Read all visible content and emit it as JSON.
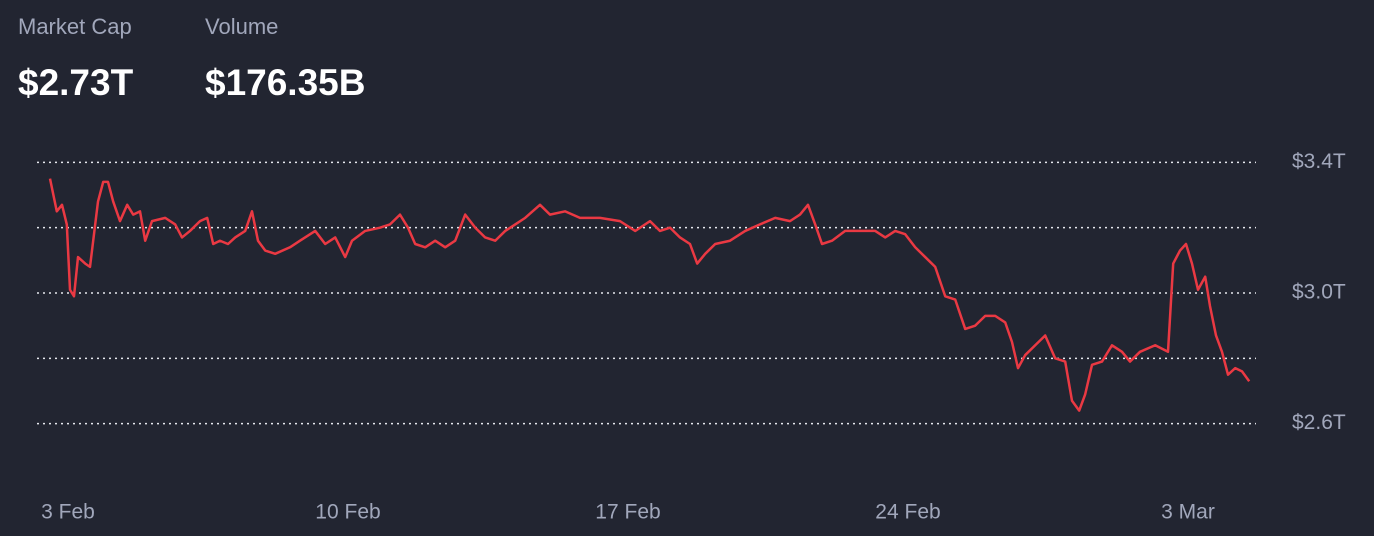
{
  "header": {
    "stats": [
      {
        "label": "Market Cap",
        "value": "$2.73T"
      },
      {
        "label": "Volume",
        "value": "$176.35B"
      }
    ]
  },
  "chart_data": {
    "type": "line",
    "x": [
      -0.45,
      -0.28,
      -0.15,
      -0.03,
      0.05,
      0.15,
      0.25,
      0.43,
      0.55,
      0.63,
      0.75,
      0.88,
      1.0,
      1.13,
      1.3,
      1.48,
      1.63,
      1.8,
      1.93,
      2.1,
      2.43,
      2.68,
      2.85,
      3.05,
      3.3,
      3.48,
      3.63,
      3.8,
      4.0,
      4.18,
      4.43,
      4.6,
      4.75,
      4.93,
      5.18,
      5.55,
      5.8,
      6.18,
      6.43,
      6.68,
      6.93,
      7.1,
      7.43,
      7.8,
      8.05,
      8.3,
      8.5,
      8.68,
      8.93,
      9.18,
      9.43,
      9.68,
      9.93,
      10.18,
      10.43,
      10.68,
      10.93,
      11.18,
      11.43,
      11.8,
      12.05,
      12.43,
      12.8,
      13.3,
      13.8,
      14.18,
      14.55,
      14.8,
      15.05,
      15.3,
      15.55,
      15.73,
      15.93,
      16.18,
      16.55,
      16.93,
      17.3,
      17.68,
      18.05,
      18.3,
      18.5,
      18.68,
      18.85,
      19.1,
      19.43,
      19.8,
      20.18,
      20.43,
      20.68,
      20.93,
      21.18,
      21.43,
      21.68,
      21.93,
      22.18,
      22.43,
      22.68,
      22.93,
      23.18,
      23.43,
      23.6,
      23.75,
      23.93,
      24.18,
      24.43,
      24.68,
      24.93,
      25.1,
      25.28,
      25.43,
      25.6,
      25.85,
      26.1,
      26.35,
      26.55,
      26.8,
      27.18,
      27.5,
      27.63,
      27.8,
      27.95,
      28.1,
      28.25,
      28.43,
      28.55,
      28.7,
      28.85,
      29.0,
      29.18,
      29.35,
      29.53
    ],
    "series": [
      {
        "color": "#ea3943",
        "values": [
          3.35,
          3.25,
          3.27,
          3.21,
          3.01,
          2.99,
          3.11,
          3.09,
          3.08,
          3.16,
          3.28,
          3.34,
          3.34,
          3.28,
          3.22,
          3.27,
          3.24,
          3.25,
          3.16,
          3.22,
          3.23,
          3.21,
          3.17,
          3.19,
          3.22,
          3.23,
          3.15,
          3.16,
          3.15,
          3.17,
          3.19,
          3.25,
          3.16,
          3.13,
          3.12,
          3.14,
          3.16,
          3.19,
          3.15,
          3.17,
          3.11,
          3.16,
          3.19,
          3.2,
          3.21,
          3.24,
          3.2,
          3.15,
          3.14,
          3.16,
          3.14,
          3.16,
          3.24,
          3.2,
          3.17,
          3.16,
          3.19,
          3.21,
          3.23,
          3.27,
          3.24,
          3.25,
          3.23,
          3.23,
          3.22,
          3.19,
          3.22,
          3.19,
          3.2,
          3.17,
          3.15,
          3.09,
          3.12,
          3.15,
          3.16,
          3.19,
          3.21,
          3.23,
          3.22,
          3.24,
          3.27,
          3.21,
          3.15,
          3.16,
          3.19,
          3.19,
          3.19,
          3.17,
          3.19,
          3.18,
          3.14,
          3.11,
          3.08,
          2.99,
          2.98,
          2.89,
          2.9,
          2.93,
          2.93,
          2.91,
          2.85,
          2.77,
          2.81,
          2.84,
          2.87,
          2.8,
          2.79,
          2.67,
          2.64,
          2.69,
          2.78,
          2.79,
          2.84,
          2.82,
          2.79,
          2.82,
          2.84,
          2.82,
          3.09,
          3.13,
          3.15,
          3.09,
          3.01,
          3.05,
          2.96,
          2.87,
          2.82,
          2.75,
          2.77,
          2.76,
          2.73
        ]
      }
    ],
    "xlim": [
      -0.7,
      29.7
    ],
    "xticks": [
      {
        "value": 0,
        "label": "3 Feb"
      },
      {
        "value": 7,
        "label": "10 Feb"
      },
      {
        "value": 14,
        "label": "17 Feb"
      },
      {
        "value": 21,
        "label": "24 Feb"
      },
      {
        "value": 28,
        "label": "3 Mar"
      }
    ],
    "ylim": [
      2.55,
      3.45
    ],
    "yticks": [
      {
        "value": 3.4,
        "label": "$3.4T"
      },
      {
        "value": 3.0,
        "label": "$3.0T"
      },
      {
        "value": 2.6,
        "label": "$2.6T"
      }
    ],
    "ygrid": [
      2.6,
      2.8,
      3.0,
      3.2,
      3.4
    ]
  }
}
